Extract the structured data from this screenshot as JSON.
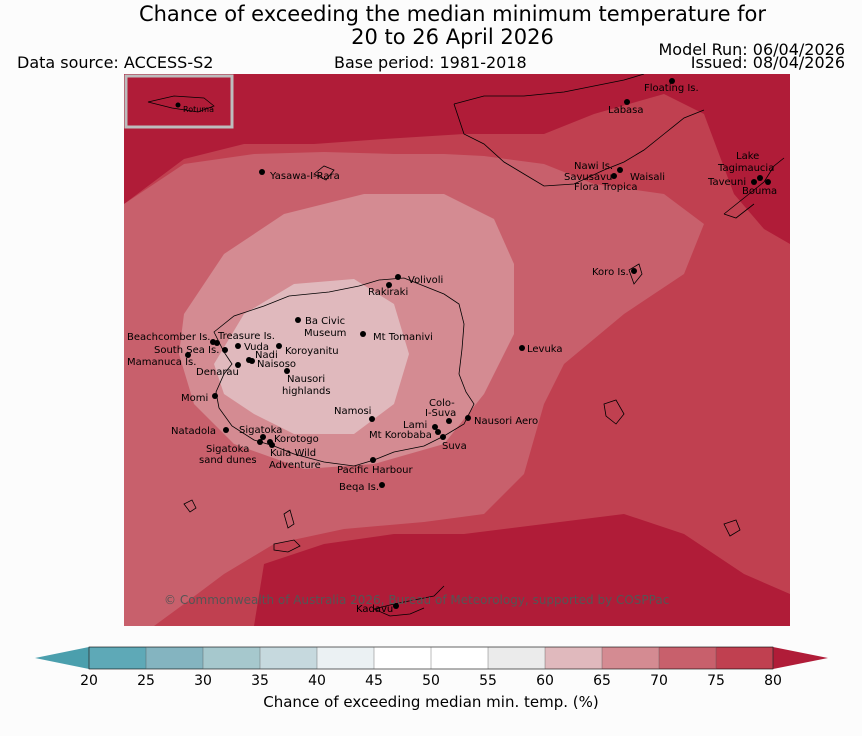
{
  "title_line1": "Chance of exceeding the median minimum temperature for",
  "title_line2": "20 to 26 April 2026",
  "data_source": "Data source: ACCESS-S2",
  "base_period": "Base period: 1981-2018",
  "model_run": "Model Run: 06/04/2026",
  "issued": "Issued: 08/04/2026",
  "inset_label": "Rotuma",
  "copyright": "© Commonwealth of Australia 2026, Bureau of Meteorology, supported by COSPPac",
  "colors": {
    "c75_80": "#c04050",
    "c80_plus": "#b01c38",
    "c70_75": "#c8606c",
    "c65_70": "#d48b92",
    "c60_65": "#e0b9bd",
    "coast": "#000000"
  },
  "places": {
    "floating": "Floating Is.",
    "labasa": "Labasa",
    "yasawa": "Yasawa-I-Rara",
    "nawi": "Nawi Is.",
    "savusavu": "Savusavu",
    "waisali": "Waisali",
    "flora": "Flora Tropica",
    "lake": "Lake",
    "tagimaucia": "Tagimaucia",
    "taveuni": "Taveuni",
    "bouma": "Bouma",
    "koro": "Koro Is.",
    "volivoli": "Volivoli",
    "rakiraki": "Rakiraki",
    "bacivic1": "Ba Civic",
    "bacivic2": "Museum",
    "mttomanivi": "Mt Tomanivi",
    "beachcomber": "Beachcomber Is.",
    "treasure": "Treasure Is.",
    "southsea": "South Sea Is.",
    "vuda": "Vuda",
    "koroyanitu": "Koroyanitu",
    "nadi": "Nadi",
    "mamanuca": "Mamanuca Is.",
    "naisoso": "Naisoso",
    "denarau": "Denarau",
    "nausori_h1": "Nausori",
    "nausori_h2": "highlands",
    "levuka": "Levuka",
    "momi": "Momi",
    "namosi": "Namosi",
    "colo1": "Colo-",
    "colo2": "I-Suva",
    "nausori_aero": "Nausori Aero",
    "natadola": "Natadola",
    "sigatoka": "Sigatoka",
    "lami": "Lami",
    "korotogo": "Korotogo",
    "mtkorobaba": "Mt Korobaba",
    "suva": "Suva",
    "sig_dunes1": "Sigatoka",
    "sig_dunes2": "sand dunes",
    "kula1": "Kula Wild",
    "kula2": "Adventure",
    "pacific": "Pacific Harbour",
    "beqa": "Beqa Is.",
    "kadavu": "Kadavu"
  },
  "colorbar": {
    "ticks": [
      "20",
      "25",
      "30",
      "35",
      "40",
      "45",
      "50",
      "55",
      "60",
      "65",
      "70",
      "75",
      "80"
    ],
    "bin_colors": [
      "#5ea9b7",
      "#84b4c0",
      "#a6c8cd",
      "#c6d9de",
      "#ebf1f3",
      "#ffffff",
      "#ffffff",
      "#ebebeb",
      "#e0b9bd",
      "#d48b92",
      "#c8606c",
      "#c04050"
    ],
    "under_color": "#4b9fad",
    "over_color": "#b01c38",
    "label": "Chance of exceeding median min. temp. (%)"
  }
}
